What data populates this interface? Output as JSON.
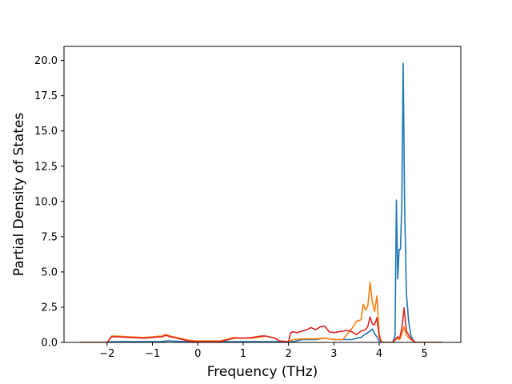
{
  "chart_data": {
    "type": "line",
    "title": "",
    "xlabel": "Frequency (THz)",
    "ylabel": "Partial Density of States",
    "xlim": [
      -2.95,
      5.8
    ],
    "ylim": [
      0,
      21
    ],
    "xticks": [
      -2,
      -1,
      0,
      1,
      2,
      3,
      4,
      5
    ],
    "xtick_labels": [
      "−2",
      "−1",
      "0",
      "1",
      "2",
      "3",
      "4",
      "5"
    ],
    "yticks": [
      0,
      2.5,
      5,
      7.5,
      10,
      12.5,
      15,
      17.5,
      20
    ],
    "ytick_labels": [
      "0.0",
      "2.5",
      "5.0",
      "7.5",
      "10.0",
      "12.5",
      "15.0",
      "17.5",
      "20.0"
    ],
    "grid": false,
    "series": [
      {
        "color": "#1f77b4",
        "x": [
          -2.6,
          -2.0,
          -1.9,
          -1.8,
          -1.5,
          -1.0,
          -0.8,
          -0.7,
          -0.6,
          -0.3,
          0.0,
          0.5,
          0.8,
          1.0,
          1.5,
          1.8,
          2.0,
          2.1,
          2.3,
          2.6,
          2.8,
          3.0,
          3.2,
          3.4,
          3.5,
          3.6,
          3.7,
          3.8,
          3.85,
          3.9,
          3.95,
          4.0,
          4.1,
          4.2,
          4.3,
          4.35,
          4.38,
          4.41,
          4.44,
          4.47,
          4.5,
          4.53,
          4.56,
          4.6,
          4.65,
          4.7,
          4.75,
          4.8,
          4.9,
          5.4
        ],
        "values": [
          0.0,
          0.0,
          0.05,
          0.05,
          0.05,
          0.05,
          0.05,
          0.1,
          0.1,
          0.05,
          0.05,
          0.05,
          0.05,
          0.05,
          0.05,
          0.05,
          0.05,
          0.05,
          0.2,
          0.2,
          0.3,
          0.2,
          0.2,
          0.2,
          0.3,
          0.35,
          0.6,
          0.8,
          0.95,
          0.6,
          0.4,
          0.1,
          0.0,
          0.0,
          0.0,
          0.5,
          10.1,
          4.5,
          6.6,
          6.6,
          10.0,
          19.8,
          10.0,
          3.5,
          1.5,
          0.5,
          0.15,
          0.0,
          0.0,
          0.0
        ]
      },
      {
        "color": "#ff7f0e",
        "x": [
          -2.6,
          -2.0,
          -1.9,
          -1.8,
          -1.5,
          -1.2,
          -1.0,
          -0.8,
          -0.7,
          -0.6,
          -0.4,
          -0.2,
          0.0,
          0.3,
          0.5,
          0.8,
          1.0,
          1.2,
          1.4,
          1.5,
          1.7,
          1.8,
          2.0,
          2.1,
          2.3,
          2.6,
          2.8,
          3.0,
          3.2,
          3.3,
          3.4,
          3.5,
          3.6,
          3.65,
          3.7,
          3.75,
          3.8,
          3.85,
          3.9,
          3.95,
          4.0,
          4.05,
          4.1,
          4.2,
          4.3,
          4.4,
          4.45,
          4.5,
          4.55,
          4.6,
          4.7,
          4.8,
          4.9,
          5.4
        ],
        "values": [
          0.0,
          0.0,
          0.45,
          0.45,
          0.4,
          0.35,
          0.4,
          0.45,
          0.55,
          0.45,
          0.3,
          0.15,
          0.1,
          0.1,
          0.1,
          0.35,
          0.3,
          0.3,
          0.4,
          0.45,
          0.3,
          0.1,
          0.05,
          0.2,
          0.25,
          0.25,
          0.3,
          0.2,
          0.2,
          0.6,
          1.0,
          1.5,
          1.6,
          2.7,
          2.3,
          2.6,
          4.25,
          2.8,
          2.2,
          3.3,
          0.6,
          0.0,
          0.0,
          0.0,
          0.0,
          0.3,
          0.2,
          0.6,
          1.1,
          0.5,
          0.2,
          0.0,
          0.0,
          0.0
        ]
      },
      {
        "color": "#d62728",
        "x": [
          -2.6,
          -2.0,
          -1.9,
          -1.8,
          -1.5,
          -1.2,
          -1.0,
          -0.8,
          -0.7,
          -0.6,
          -0.4,
          -0.2,
          0.0,
          0.3,
          0.5,
          0.8,
          1.0,
          1.2,
          1.4,
          1.5,
          1.7,
          1.8,
          2.0,
          2.05,
          2.1,
          2.2,
          2.3,
          2.4,
          2.5,
          2.6,
          2.7,
          2.8,
          2.9,
          3.0,
          3.1,
          3.2,
          3.3,
          3.4,
          3.5,
          3.6,
          3.7,
          3.75,
          3.8,
          3.85,
          3.9,
          3.95,
          4.0,
          4.05,
          4.1,
          4.2,
          4.3,
          4.4,
          4.45,
          4.5,
          4.55,
          4.6,
          4.7,
          4.8,
          4.9,
          5.4
        ],
        "values": [
          0.0,
          0.0,
          0.4,
          0.4,
          0.35,
          0.3,
          0.35,
          0.4,
          0.5,
          0.4,
          0.25,
          0.1,
          0.05,
          0.05,
          0.05,
          0.3,
          0.3,
          0.35,
          0.45,
          0.45,
          0.3,
          0.1,
          0.05,
          0.7,
          0.75,
          0.7,
          0.8,
          0.9,
          1.05,
          0.9,
          1.1,
          1.15,
          0.75,
          0.7,
          0.75,
          0.8,
          0.85,
          0.75,
          0.55,
          0.8,
          0.9,
          1.15,
          1.8,
          1.3,
          1.25,
          1.75,
          0.4,
          0.0,
          0.0,
          0.0,
          0.0,
          0.4,
          0.3,
          1.0,
          2.45,
          0.8,
          0.25,
          0.0,
          0.0,
          0.0
        ]
      }
    ]
  }
}
